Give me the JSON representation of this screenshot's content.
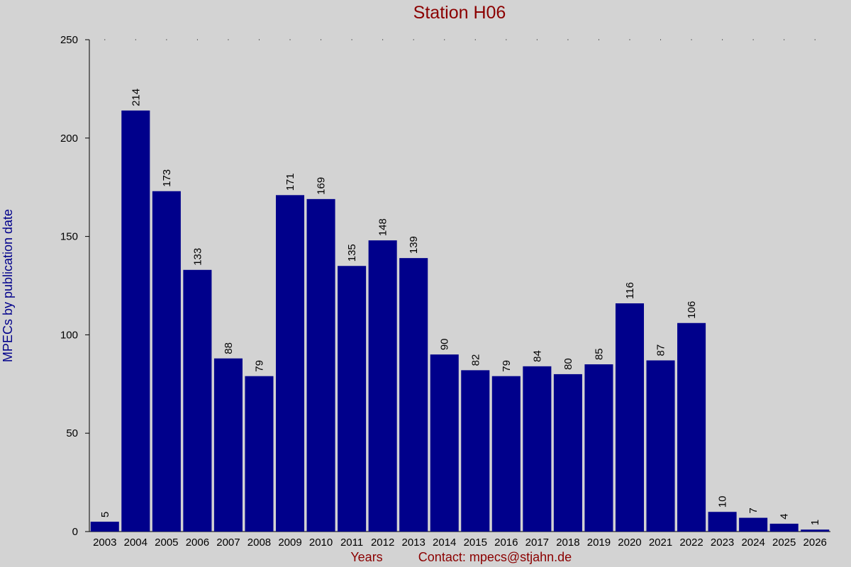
{
  "chart_data": {
    "type": "bar",
    "title": "Station H06",
    "xlabel": "Years",
    "ylabel": "MPECs by publication date",
    "footer_contact": "Contact: mpecs@stjahn.de",
    "categories": [
      "2003",
      "2004",
      "2005",
      "2006",
      "2007",
      "2008",
      "2009",
      "2010",
      "2011",
      "2012",
      "2013",
      "2014",
      "2015",
      "2016",
      "2017",
      "2018",
      "2019",
      "2020",
      "2021",
      "2022",
      "2023",
      "2024",
      "2025",
      "2026"
    ],
    "values": [
      5,
      214,
      173,
      133,
      88,
      79,
      171,
      169,
      135,
      148,
      139,
      90,
      82,
      79,
      84,
      80,
      85,
      116,
      87,
      106,
      10,
      7,
      4,
      1
    ],
    "ylim": [
      0,
      250
    ],
    "yticks": [
      0,
      50,
      100,
      150,
      200,
      250
    ],
    "grid": "dotted top line",
    "colors": {
      "bar": "#00008b",
      "title": "#8b0000",
      "ylabel": "#00008b",
      "footer": "#8b0000",
      "background": "#d3d3d3"
    }
  }
}
